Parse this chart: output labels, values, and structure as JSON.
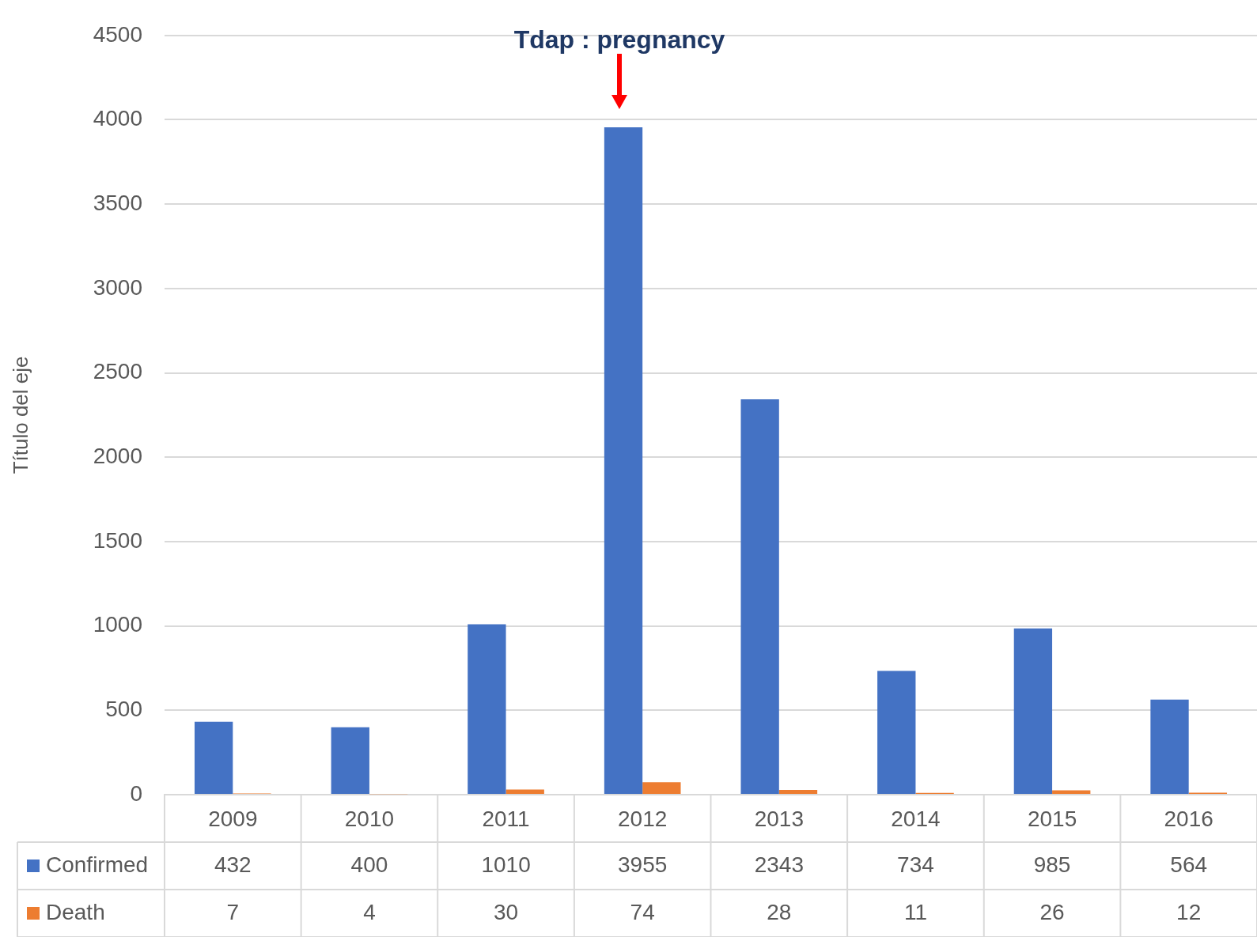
{
  "chart_data": {
    "type": "bar",
    "ylabel": "Título del eje",
    "categories": [
      "2009",
      "2010",
      "2011",
      "2012",
      "2013",
      "2014",
      "2015",
      "2016"
    ],
    "series": [
      {
        "name": "Confirmed",
        "color": "#4472c4",
        "values": [
          432,
          400,
          1010,
          3955,
          2343,
          734,
          985,
          564
        ]
      },
      {
        "name": "Death",
        "color": "#ed7d31",
        "values": [
          7,
          4,
          30,
          74,
          28,
          11,
          26,
          12
        ]
      }
    ],
    "ylim": [
      0,
      4500
    ],
    "yticks": [
      0,
      500,
      1000,
      1500,
      2000,
      2500,
      3000,
      3500,
      4000,
      4500
    ],
    "grid": "y",
    "legend": "bottom",
    "data_labels": true,
    "annotations": [
      "Tdap : pregnancy"
    ]
  }
}
